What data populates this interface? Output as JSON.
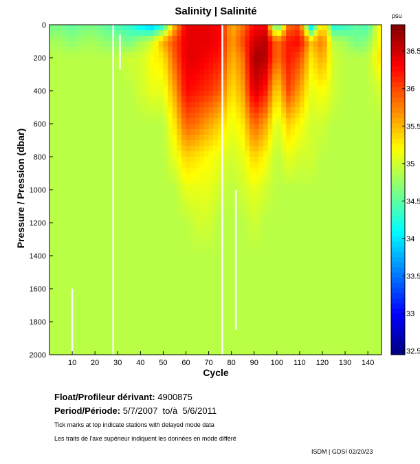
{
  "chart_data": {
    "type": "heatmap",
    "title": "Salinity | Salinité",
    "xlabel": "Cycle",
    "ylabel": "Pressure / Pression (dbar)",
    "xlim": [
      0,
      146
    ],
    "ylim": [
      2000,
      0
    ],
    "xticks": [
      10,
      20,
      30,
      40,
      50,
      60,
      70,
      80,
      90,
      100,
      110,
      120,
      130,
      140
    ],
    "yticks": [
      0,
      200,
      400,
      600,
      800,
      1000,
      1200,
      1400,
      1600,
      1800,
      2000
    ],
    "colorbar": {
      "label": "psu",
      "range": [
        32.45,
        36.85
      ],
      "ticks": [
        32.5,
        33,
        33.5,
        34,
        34.5,
        35,
        35.5,
        36,
        36.5
      ]
    },
    "contour_levels": [
      35,
      35.5,
      36,
      36.5
    ],
    "cycles": [
      0,
      5,
      10,
      15,
      20,
      25,
      30,
      35,
      40,
      45,
      50,
      55,
      60,
      65,
      70,
      75,
      80,
      85,
      90,
      95,
      100,
      105,
      110,
      115,
      120,
      125,
      130,
      135,
      140,
      145
    ],
    "pressures": [
      0,
      100,
      200,
      400,
      600,
      800,
      1000,
      1200,
      1400,
      2000
    ],
    "salinity": [
      [
        34.6,
        34.6,
        34.5,
        34.6,
        34.6,
        34.5,
        34.4,
        34.3,
        34.0,
        33.8,
        34.2,
        35.5,
        36.4,
        36.4,
        36.4,
        36.3,
        35.5,
        35.8,
        36.3,
        36.3,
        34.2,
        35.8,
        36.0,
        33.8,
        35.5,
        34.2,
        34.3,
        34.5,
        34.4,
        35.2
      ],
      [
        34.8,
        34.8,
        34.7,
        34.8,
        34.8,
        34.7,
        34.7,
        34.6,
        34.8,
        35.0,
        35.6,
        36.0,
        36.4,
        36.4,
        36.4,
        36.3,
        35.6,
        36.0,
        36.5,
        36.6,
        35.8,
        36.2,
        36.3,
        35.5,
        35.8,
        34.9,
        34.8,
        34.6,
        34.7,
        35.2
      ],
      [
        34.9,
        34.9,
        34.9,
        34.9,
        34.9,
        34.9,
        34.9,
        35.0,
        35.0,
        35.2,
        35.3,
        35.9,
        36.4,
        36.4,
        36.3,
        36.2,
        35.5,
        35.8,
        36.7,
        36.6,
        35.8,
        36.2,
        36.0,
        35.3,
        35.6,
        35.0,
        34.9,
        34.9,
        34.9,
        35.3
      ],
      [
        34.9,
        34.9,
        34.9,
        34.9,
        34.9,
        34.9,
        34.9,
        34.9,
        35.0,
        35.1,
        35.1,
        35.6,
        36.3,
        36.2,
        36.1,
        35.9,
        35.3,
        35.6,
        36.5,
        36.2,
        35.3,
        36.0,
        35.6,
        35.1,
        35.2,
        35.0,
        34.9,
        34.9,
        34.9,
        35.0
      ],
      [
        34.9,
        34.9,
        34.9,
        34.9,
        34.9,
        34.9,
        34.9,
        34.9,
        34.9,
        34.9,
        34.9,
        35.3,
        35.9,
        35.8,
        35.6,
        35.4,
        35.1,
        35.3,
        35.9,
        35.6,
        35.0,
        35.4,
        35.2,
        35.0,
        35.0,
        34.9,
        34.9,
        34.9,
        34.9,
        34.9
      ],
      [
        34.9,
        34.9,
        34.9,
        34.9,
        34.9,
        34.9,
        34.9,
        34.9,
        34.9,
        34.9,
        34.9,
        35.1,
        35.4,
        35.3,
        35.2,
        35.1,
        35.0,
        35.1,
        35.4,
        35.2,
        34.9,
        35.1,
        35.0,
        35.0,
        34.9,
        34.9,
        34.9,
        34.9,
        34.9,
        34.9
      ],
      [
        34.9,
        34.9,
        34.9,
        34.9,
        34.9,
        34.9,
        34.9,
        34.9,
        34.9,
        34.9,
        34.9,
        34.9,
        35.1,
        35.1,
        35.1,
        35.0,
        34.9,
        35.0,
        35.1,
        35.0,
        34.9,
        34.9,
        34.9,
        34.9,
        34.9,
        34.9,
        34.9,
        34.9,
        34.9,
        34.9
      ],
      [
        34.9,
        34.9,
        34.9,
        34.9,
        34.9,
        34.9,
        34.9,
        34.9,
        34.9,
        34.9,
        34.9,
        34.9,
        34.9,
        35.0,
        35.0,
        34.9,
        34.9,
        34.9,
        35.0,
        34.9,
        34.9,
        34.9,
        34.9,
        34.9,
        34.9,
        34.9,
        34.9,
        34.9,
        34.9,
        34.9
      ],
      [
        34.9,
        34.9,
        34.9,
        34.9,
        34.9,
        34.9,
        34.9,
        34.9,
        34.9,
        34.9,
        34.9,
        34.9,
        34.9,
        34.9,
        34.9,
        34.9,
        34.9,
        34.9,
        34.9,
        34.9,
        34.9,
        34.9,
        34.9,
        34.9,
        34.9,
        34.9,
        34.9,
        34.9,
        34.9,
        34.9
      ],
      [
        34.9,
        34.9,
        34.9,
        34.9,
        34.9,
        34.9,
        34.9,
        34.9,
        34.9,
        34.9,
        34.9,
        34.9,
        34.9,
        34.9,
        34.9,
        34.9,
        34.9,
        34.9,
        34.9,
        34.9,
        34.9,
        34.9,
        34.9,
        34.9,
        34.9,
        34.9,
        34.9,
        34.9,
        34.9,
        34.9
      ]
    ]
  },
  "info": {
    "float_label": "Float/Profileur dérivant:",
    "float_id": "4900875",
    "period_label": "Period/Période:",
    "period_start": "5/7/2007",
    "period_sep": "to/à",
    "period_end": "5/6/2011",
    "note_en": "Tick marks at top indicate stations with delayed mode data",
    "note_fr": "Les traits de l'axe supérieur indiquent les données en mode différé",
    "credit": "ISDM | GDSI  02/20/23"
  }
}
